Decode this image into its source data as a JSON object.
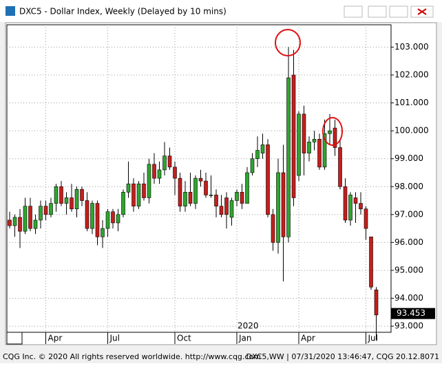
{
  "chart_data": {
    "type": "candlestick",
    "title": "DXC5 - Dollar Index, Weekly (Delayed by 10 mins)",
    "categories": [
      null,
      null,
      null,
      null,
      null,
      null,
      null,
      "Apr",
      null,
      null,
      null,
      null,
      null,
      null,
      null,
      null,
      null,
      null,
      null,
      "Jul",
      null,
      null,
      null,
      null,
      null,
      null,
      null,
      null,
      null,
      null,
      null,
      null,
      "Oct",
      null,
      null,
      null,
      null,
      null,
      null,
      null,
      null,
      null,
      null,
      null,
      "Jan",
      null,
      null,
      null,
      null,
      null,
      null,
      null,
      null,
      null,
      null,
      null,
      "Apr",
      null,
      null,
      null,
      null,
      null,
      null,
      null,
      null,
      null,
      null,
      null,
      null,
      "Jul",
      null,
      null
    ],
    "year_label": "2020",
    "open": [
      96.8,
      96.6,
      96.9,
      96.4,
      97.3,
      96.5,
      96.8,
      97.3,
      97.0,
      97.4,
      98.0,
      97.4,
      97.6,
      97.2,
      97.9,
      97.5,
      96.5,
      97.4,
      96.2,
      96.5,
      97.1,
      96.7,
      97.0,
      97.8,
      98.1,
      97.3,
      98.1,
      97.6,
      98.8,
      98.3,
      98.6,
      99.1,
      98.7,
      98.3,
      97.3,
      97.8,
      97.4,
      98.3,
      98.2,
      97.7,
      97.7,
      97.3,
      97.6,
      96.9,
      97.5,
      97.8,
      97.4,
      98.5,
      99.0,
      99.2,
      99.5,
      97.0,
      96.0,
      98.5,
      96.2,
      102.0,
      98.4,
      100.6,
      99.2,
      99.6,
      99.7,
      98.7,
      99.9,
      100.1,
      99.4,
      98.0,
      96.8,
      97.6,
      97.4,
      97.2,
      96.2,
      94.3
    ],
    "high": [
      97.1,
      97.0,
      97.2,
      97.6,
      97.6,
      97.0,
      97.5,
      97.5,
      97.6,
      98.1,
      98.2,
      97.8,
      98.1,
      98.0,
      98.0,
      97.8,
      97.5,
      97.5,
      96.8,
      97.2,
      97.2,
      97.2,
      97.9,
      98.9,
      98.3,
      98.2,
      98.5,
      99.0,
      99.2,
      98.9,
      99.6,
      99.4,
      98.9,
      98.5,
      98.2,
      98.5,
      98.4,
      98.6,
      98.5,
      98.4,
      97.9,
      97.7,
      97.8,
      97.6,
      97.9,
      98.1,
      98.7,
      99.2,
      99.8,
      99.9,
      99.7,
      97.2,
      99.0,
      99.5,
      103.0,
      102.9,
      100.7,
      100.9,
      99.8,
      100.0,
      99.9,
      100.4,
      100.6,
      100.4,
      99.7,
      98.3,
      97.8,
      97.8,
      97.8,
      97.3,
      96.2,
      94.4
    ],
    "low": [
      96.5,
      96.2,
      95.8,
      96.3,
      96.4,
      96.3,
      96.5,
      96.8,
      96.9,
      97.1,
      97.3,
      97.0,
      97.1,
      96.9,
      97.3,
      96.4,
      96.3,
      95.9,
      95.8,
      96.2,
      96.5,
      96.4,
      96.9,
      97.6,
      97.1,
      97.2,
      97.5,
      97.4,
      98.1,
      98.1,
      98.4,
      98.6,
      97.7,
      97.1,
      97.1,
      97.3,
      97.2,
      98.0,
      97.6,
      97.6,
      96.9,
      96.9,
      96.5,
      96.6,
      97.3,
      97.2,
      97.4,
      98.4,
      98.7,
      99.0,
      96.9,
      95.7,
      95.6,
      94.6,
      96.0,
      97.3,
      98.2,
      98.4,
      98.9,
      99.3,
      98.6,
      98.6,
      99.5,
      99.1,
      97.9,
      96.7,
      96.6,
      96.7,
      97.0,
      96.1,
      94.3,
      92.5
    ],
    "close": [
      96.6,
      96.9,
      96.4,
      97.3,
      96.5,
      96.8,
      97.3,
      97.0,
      97.4,
      98.0,
      97.4,
      97.6,
      97.2,
      97.9,
      97.5,
      96.5,
      97.4,
      96.2,
      96.5,
      97.1,
      96.7,
      97.0,
      97.8,
      98.1,
      97.3,
      98.1,
      97.6,
      98.8,
      98.3,
      98.6,
      99.1,
      98.7,
      98.3,
      97.3,
      97.8,
      97.4,
      98.3,
      98.2,
      97.7,
      97.7,
      97.3,
      97.0,
      97.0,
      97.5,
      97.8,
      97.4,
      98.5,
      99.0,
      99.3,
      99.5,
      97.0,
      96.0,
      98.5,
      96.2,
      101.9,
      97.6,
      100.6,
      99.2,
      99.6,
      99.7,
      98.7,
      99.9,
      100.0,
      99.4,
      98.0,
      96.8,
      97.7,
      97.4,
      97.2,
      96.5,
      94.4,
      93.4
    ],
    "up_color": "#2fa52f",
    "down_color": "#c41f1c",
    "ylim": [
      92.78,
      103.8
    ],
    "yticks": [
      {
        "value": 93,
        "label": "93.000"
      },
      {
        "value": 94,
        "label": "94.000"
      },
      {
        "value": 95,
        "label": "95.000"
      },
      {
        "value": 96,
        "label": "96.000"
      },
      {
        "value": 97,
        "label": "97.000"
      },
      {
        "value": 98,
        "label": "98.000"
      },
      {
        "value": 99,
        "label": "99.000"
      },
      {
        "value": 100,
        "label": "100.000"
      },
      {
        "value": 101,
        "label": "101.000"
      },
      {
        "value": 102,
        "label": "102.000"
      },
      {
        "value": 103,
        "label": "103.000"
      }
    ],
    "last_value": 93.453,
    "grid": true
  },
  "footer": {
    "left": "CQG Inc. © 2020 All rights reserved worldwide. http://www.cqg.com",
    "right": "DXC5,WW | 07/31/2020 13:46:47, CQG 20.12.8071"
  }
}
